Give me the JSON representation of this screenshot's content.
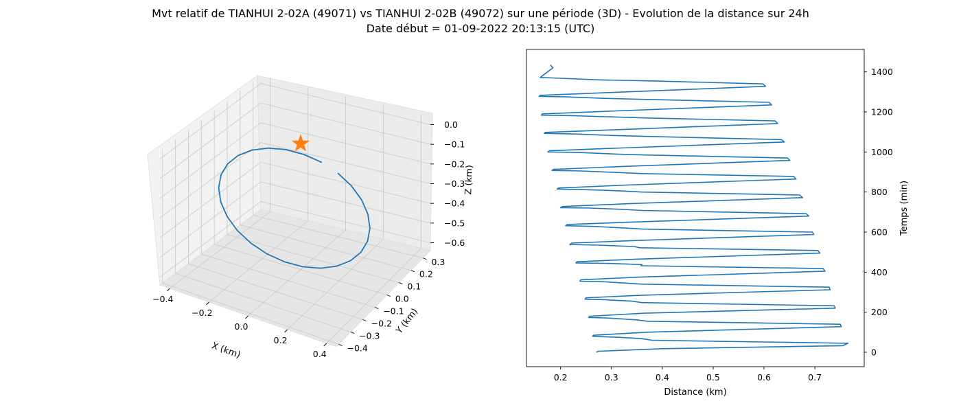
{
  "title_line1": "Mvt relatif de TIANHUI 2-02A (49071) vs TIANHUI 2-02B (49072) sur une période (3D) - Evolution de la distance sur 24h",
  "title_line2": "Date début = 01-09-2022 20:13:15 (UTC)",
  "colors": {
    "series": "#1f77b4",
    "marker": "#ff7f0e",
    "pane": "#f2f2f2",
    "grid": "#cccccc"
  },
  "chart_data": [
    {
      "type": "line3d",
      "xlabel": "X (km)",
      "ylabel": "Y (km)",
      "zlabel": "Z (km)",
      "x_ticks": [
        "−0.4",
        "−0.2",
        "0.0",
        "0.2",
        "0.4"
      ],
      "y_ticks": [
        "−0.4",
        "−0.3",
        "−0.2",
        "−0.1",
        "0.0",
        "0.1",
        "0.2",
        "0.3"
      ],
      "z_ticks": [
        "0.0",
        "−0.1",
        "−0.2",
        "−0.3",
        "−0.4",
        "−0.5",
        "−0.6"
      ],
      "xlim": [
        -0.45,
        0.45
      ],
      "ylim": [
        -0.42,
        0.36
      ],
      "zlim": [
        -0.64,
        0.04
      ],
      "grid": true,
      "marker": {
        "symbol": "star",
        "x": 0,
        "y": 0,
        "z": 0
      },
      "orbit_center": [
        0,
        0,
        -0.3
      ],
      "orbit_radius_approx": 0.4,
      "trajectory": "closed relative orbit (ellipse) around the reference satellite"
    },
    {
      "type": "line",
      "xlabel": "Distance (km)",
      "ylabel": "Temps (min)",
      "x_ticks": [
        "0.2",
        "0.3",
        "0.4",
        "0.5",
        "0.6",
        "0.7"
      ],
      "y_ticks": [
        "0",
        "200",
        "400",
        "600",
        "800",
        "1000",
        "1200",
        "1400"
      ],
      "xlim": [
        0.133,
        0.797
      ],
      "ylim": [
        -72,
        1512
      ],
      "grid": false,
      "y_axis_position": "right",
      "series": [
        {
          "x": [
            0.27,
            0.275,
            0.4,
            0.755,
            0.765,
            0.38,
            0.36,
            0.31,
            0.263,
            0.265,
            0.37,
            0.752,
            0.75,
            0.37,
            0.35,
            0.3,
            0.255,
            0.258,
            0.365,
            0.74,
            0.738,
            0.36,
            0.34,
            0.29,
            0.248,
            0.25,
            0.36,
            0.73,
            0.728,
            0.36,
            0.33,
            0.285,
            0.238,
            0.24,
            0.355,
            0.72,
            0.716,
            0.358,
            0.36,
            0.29,
            0.23,
            0.232,
            0.35,
            0.71,
            0.706,
            0.355,
            0.345,
            0.275,
            0.218,
            0.222,
            0.345,
            0.698,
            0.695,
            0.36,
            0.33,
            0.268,
            0.21,
            0.213,
            0.34,
            0.688,
            0.683,
            0.36,
            0.32,
            0.258,
            0.2,
            0.204,
            0.335,
            0.676,
            0.67,
            0.36,
            0.315,
            0.25,
            0.193,
            0.196,
            0.33,
            0.663,
            0.658,
            0.36,
            0.31,
            0.24,
            0.183,
            0.186,
            0.325,
            0.651,
            0.646,
            0.365,
            0.305,
            0.232,
            0.175,
            0.178,
            0.32,
            0.64,
            0.634,
            0.365,
            0.295,
            0.225,
            0.168,
            0.17,
            0.318,
            0.627,
            0.622,
            0.37,
            0.29,
            0.216,
            0.162,
            0.164,
            0.31,
            0.615,
            0.61,
            0.375,
            0.285,
            0.21,
            0.158,
            0.16,
            0.3,
            0.603,
            0.598,
            0.378,
            0.275,
            0.2,
            0.16,
            0.185,
            0.18
          ],
          "y": [
            0,
            5,
            18,
            33,
            45,
            60,
            68,
            75,
            80,
            85,
            100,
            128,
            140,
            155,
            162,
            170,
            174,
            180,
            195,
            220,
            232,
            248,
            255,
            262,
            265,
            272,
            285,
            312,
            325,
            340,
            345,
            352,
            355,
            362,
            375,
            405,
            418,
            432,
            438,
            444,
            446,
            452,
            465,
            495,
            508,
            522,
            528,
            535,
            538,
            545,
            558,
            588,
            600,
            615,
            620,
            628,
            632,
            638,
            650,
            680,
            692,
            708,
            714,
            720,
            722,
            728,
            742,
            772,
            785,
            800,
            806,
            812,
            815,
            820,
            835,
            865,
            878,
            892,
            898,
            905,
            908,
            913,
            928,
            958,
            970,
            985,
            990,
            998,
            1000,
            1006,
            1020,
            1050,
            1062,
            1078,
            1083,
            1090,
            1093,
            1098,
            1112,
            1142,
            1155,
            1170,
            1176,
            1182,
            1184,
            1190,
            1205,
            1235,
            1248,
            1262,
            1268,
            1275,
            1278,
            1283,
            1297,
            1328,
            1340,
            1355,
            1360,
            1368,
            1372,
            1420,
            1435
          ]
        }
      ]
    }
  ]
}
